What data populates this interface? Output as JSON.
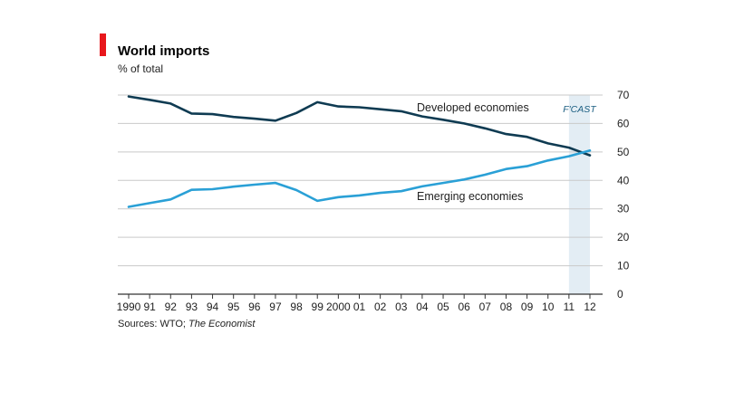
{
  "chart_data": {
    "type": "line",
    "title": "World imports",
    "subtitle": "% of total",
    "ylim": [
      0,
      70
    ],
    "yticks": [
      0,
      10,
      20,
      30,
      40,
      50,
      60,
      70
    ],
    "x": [
      1990,
      1991,
      1992,
      1993,
      1994,
      1995,
      1996,
      1997,
      1998,
      1999,
      2000,
      2001,
      2002,
      2003,
      2004,
      2005,
      2006,
      2007,
      2008,
      2009,
      2010,
      2011,
      2012
    ],
    "xtick_labels": [
      "1990",
      "91",
      "92",
      "93",
      "94",
      "95",
      "96",
      "97",
      "98",
      "99",
      "2000",
      "01",
      "02",
      "03",
      "04",
      "05",
      "06",
      "07",
      "08",
      "09",
      "10",
      "11",
      "12"
    ],
    "forecast": {
      "label": "F'CAST",
      "from": 2011,
      "to": 2012
    },
    "grid": true,
    "series": [
      {
        "name": "Developed economies",
        "color": "#0f3b52",
        "values": [
          69.5,
          68.3,
          67.0,
          63.5,
          63.3,
          62.3,
          61.7,
          61.0,
          63.7,
          67.5,
          66.0,
          65.7,
          65.0,
          64.3,
          62.5,
          61.3,
          60.0,
          58.3,
          56.3,
          55.3,
          53.0,
          51.5,
          48.8
        ]
      },
      {
        "name": "Emerging economies",
        "color": "#2aa0d6",
        "values": [
          30.7,
          32.0,
          33.3,
          36.7,
          36.9,
          37.8,
          38.5,
          39.1,
          36.6,
          32.8,
          34.1,
          34.7,
          35.6,
          36.2,
          37.9,
          39.1,
          40.3,
          42.0,
          44.0,
          45.0,
          47.0,
          48.5,
          50.5
        ]
      }
    ],
    "source": "Sources: WTO; The Economist",
    "source_prefix": "Sources: WTO; ",
    "source_italic": "The Economist"
  },
  "colors": {
    "accent_bar": "#e8171c",
    "forecast_shade": "#e3edf4",
    "forecast_text": "#1d5f82",
    "grid": "#c9c9c9",
    "axis": "#333333"
  }
}
